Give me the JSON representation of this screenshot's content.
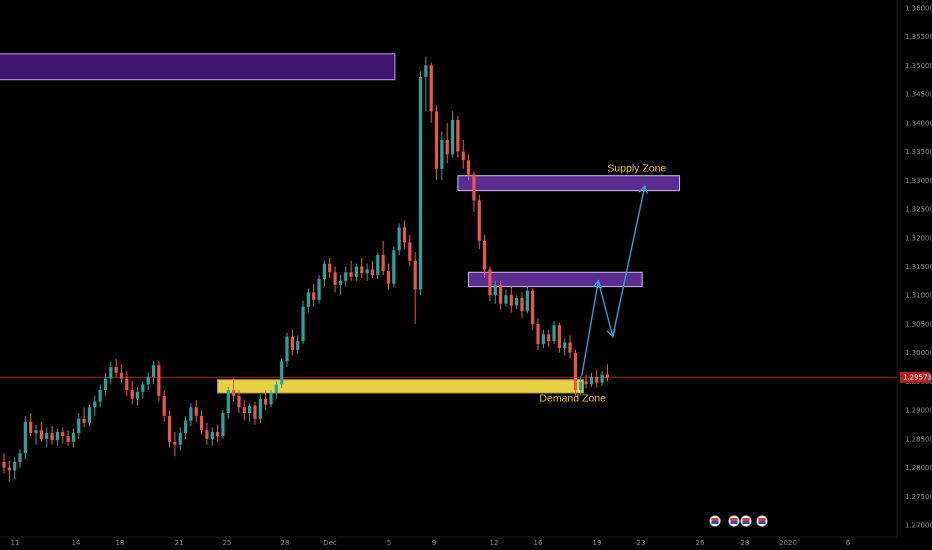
{
  "chart_data": {
    "type": "candlestick",
    "instrument_price_label": "1.29573",
    "current_price": 1.29573,
    "ylim": [
      1.2695,
      1.3605
    ],
    "y_ticks": [
      1.27,
      1.275,
      1.28,
      1.285,
      1.29,
      1.295,
      1.3,
      1.305,
      1.31,
      1.315,
      1.32,
      1.325,
      1.33,
      1.335,
      1.34,
      1.345,
      1.35,
      1.355,
      1.36
    ],
    "x_ticks": [
      "11",
      "14",
      "18",
      "21",
      "25",
      "28",
      "Dec",
      "5",
      "9",
      "12",
      "16",
      "19",
      "23",
      "26",
      "28",
      "2020",
      "6"
    ],
    "candles": [
      [
        1.281,
        1.2825,
        1.279,
        1.28
      ],
      [
        1.28,
        1.2812,
        1.2775,
        1.2795
      ],
      [
        1.2795,
        1.2818,
        1.278,
        1.281
      ],
      [
        1.281,
        1.2832,
        1.28,
        1.2825
      ],
      [
        1.2825,
        1.289,
        1.2815,
        1.288
      ],
      [
        1.288,
        1.2895,
        1.2855,
        1.286
      ],
      [
        1.286,
        1.2875,
        1.284,
        1.2865
      ],
      [
        1.2865,
        1.288,
        1.2845,
        1.285
      ],
      [
        1.285,
        1.287,
        1.2835,
        1.286
      ],
      [
        1.286,
        1.2872,
        1.284,
        1.2848
      ],
      [
        1.2848,
        1.2868,
        1.2838,
        1.2862
      ],
      [
        1.2862,
        1.287,
        1.2842,
        1.2855
      ],
      [
        1.2855,
        1.2865,
        1.2838,
        1.2845
      ],
      [
        1.2845,
        1.2868,
        1.2835,
        1.286
      ],
      [
        1.286,
        1.2895,
        1.285,
        1.2885
      ],
      [
        1.2885,
        1.2905,
        1.287,
        1.2878
      ],
      [
        1.2878,
        1.291,
        1.2872,
        1.2905
      ],
      [
        1.2905,
        1.2925,
        1.289,
        1.2915
      ],
      [
        1.2915,
        1.2945,
        1.2905,
        1.2935
      ],
      [
        1.2935,
        1.2965,
        1.2925,
        1.2955
      ],
      [
        1.2955,
        1.2985,
        1.2945,
        1.2975
      ],
      [
        1.2975,
        1.299,
        1.2958,
        1.2965
      ],
      [
        1.2965,
        1.298,
        1.2948,
        1.2955
      ],
      [
        1.2955,
        1.2968,
        1.2925,
        1.2935
      ],
      [
        1.2935,
        1.295,
        1.291,
        1.292
      ],
      [
        1.292,
        1.294,
        1.2908,
        1.2932
      ],
      [
        1.2932,
        1.295,
        1.292,
        1.2945
      ],
      [
        1.2945,
        1.2965,
        1.2935,
        1.2958
      ],
      [
        1.2958,
        1.2985,
        1.2945,
        1.2978
      ],
      [
        1.2978,
        1.2985,
        1.2915,
        1.2925
      ],
      [
        1.2925,
        1.2935,
        1.288,
        1.289
      ],
      [
        1.289,
        1.29,
        1.2835,
        1.2845
      ],
      [
        1.2845,
        1.2862,
        1.282,
        1.284
      ],
      [
        1.284,
        1.287,
        1.283,
        1.286
      ],
      [
        1.286,
        1.289,
        1.285,
        1.2882
      ],
      [
        1.2882,
        1.2912,
        1.2872,
        1.2905
      ],
      [
        1.2905,
        1.2918,
        1.288,
        1.289
      ],
      [
        1.289,
        1.29,
        1.2858,
        1.2865
      ],
      [
        1.2865,
        1.2878,
        1.284,
        1.285
      ],
      [
        1.285,
        1.287,
        1.2838,
        1.2862
      ],
      [
        1.2862,
        1.2875,
        1.2845,
        1.2855
      ],
      [
        1.2855,
        1.29,
        1.285,
        1.2895
      ],
      [
        1.2895,
        1.294,
        1.2885,
        1.2935
      ],
      [
        1.2935,
        1.2955,
        1.2915,
        1.2925
      ],
      [
        1.2925,
        1.2935,
        1.2895,
        1.2905
      ],
      [
        1.2905,
        1.2918,
        1.2882,
        1.2895
      ],
      [
        1.2895,
        1.2912,
        1.288,
        1.2908
      ],
      [
        1.2908,
        1.2915,
        1.2875,
        1.2885
      ],
      [
        1.2885,
        1.2928,
        1.2878,
        1.292
      ],
      [
        1.292,
        1.2935,
        1.29,
        1.291
      ],
      [
        1.291,
        1.2935,
        1.2905,
        1.293
      ],
      [
        1.293,
        1.295,
        1.292,
        1.2945
      ],
      [
        1.2945,
        1.299,
        1.2938,
        1.2985
      ],
      [
        1.2985,
        1.3035,
        1.2975,
        1.3028
      ],
      [
        1.3028,
        1.304,
        1.2995,
        1.3005
      ],
      [
        1.3005,
        1.303,
        1.2998,
        1.302
      ],
      [
        1.302,
        1.309,
        1.3015,
        1.308
      ],
      [
        1.308,
        1.3112,
        1.307,
        1.3105
      ],
      [
        1.3105,
        1.312,
        1.308,
        1.3092
      ],
      [
        1.3092,
        1.3135,
        1.3085,
        1.3128
      ],
      [
        1.3128,
        1.316,
        1.3115,
        1.3155
      ],
      [
        1.3155,
        1.3165,
        1.313,
        1.314
      ],
      [
        1.314,
        1.315,
        1.3105,
        1.3118
      ],
      [
        1.3118,
        1.3135,
        1.31,
        1.3125
      ],
      [
        1.3125,
        1.315,
        1.3115,
        1.314
      ],
      [
        1.314,
        1.316,
        1.3125,
        1.3132
      ],
      [
        1.3132,
        1.3155,
        1.3125,
        1.315
      ],
      [
        1.315,
        1.3165,
        1.313,
        1.3138
      ],
      [
        1.3138,
        1.3155,
        1.3125,
        1.3145
      ],
      [
        1.3145,
        1.316,
        1.313,
        1.3135
      ],
      [
        1.3135,
        1.3175,
        1.3128,
        1.317
      ],
      [
        1.317,
        1.3195,
        1.3135,
        1.3142
      ],
      [
        1.3142,
        1.3155,
        1.311,
        1.312
      ],
      [
        1.312,
        1.3185,
        1.3115,
        1.3178
      ],
      [
        1.3178,
        1.3225,
        1.317,
        1.3218
      ],
      [
        1.3218,
        1.323,
        1.318,
        1.3192
      ],
      [
        1.3192,
        1.3205,
        1.315,
        1.316
      ],
      [
        1.316,
        1.3175,
        1.305,
        1.311
      ],
      [
        1.311,
        1.349,
        1.31,
        1.348
      ],
      [
        1.348,
        1.3515,
        1.342,
        1.35
      ],
      [
        1.35,
        1.3505,
        1.34,
        1.342
      ],
      [
        1.342,
        1.343,
        1.33,
        1.332
      ],
      [
        1.332,
        1.3385,
        1.33,
        1.337
      ],
      [
        1.337,
        1.34,
        1.333,
        1.3345
      ],
      [
        1.3345,
        1.342,
        1.334,
        1.3405
      ],
      [
        1.3405,
        1.3412,
        1.334,
        1.335
      ],
      [
        1.335,
        1.337,
        1.332,
        1.3335
      ],
      [
        1.3335,
        1.3345,
        1.33,
        1.331
      ],
      [
        1.331,
        1.3315,
        1.3245,
        1.3265
      ],
      [
        1.3265,
        1.3275,
        1.318,
        1.3195
      ],
      [
        1.3195,
        1.3205,
        1.313,
        1.3145
      ],
      [
        1.3145,
        1.315,
        1.309,
        1.31
      ],
      [
        1.31,
        1.3125,
        1.3085,
        1.3118
      ],
      [
        1.3118,
        1.3125,
        1.3075,
        1.3085
      ],
      [
        1.3085,
        1.311,
        1.308,
        1.31
      ],
      [
        1.31,
        1.3115,
        1.307,
        1.3082
      ],
      [
        1.3082,
        1.31,
        1.3075,
        1.3095
      ],
      [
        1.3095,
        1.3105,
        1.306,
        1.3072
      ],
      [
        1.3072,
        1.3115,
        1.3068,
        1.3108
      ],
      [
        1.3108,
        1.3112,
        1.304,
        1.305
      ],
      [
        1.305,
        1.306,
        1.3005,
        1.3015
      ],
      [
        1.3015,
        1.304,
        1.3008,
        1.3032
      ],
      [
        1.3032,
        1.304,
        1.301,
        1.302
      ],
      [
        1.302,
        1.3055,
        1.3015,
        1.3048
      ],
      [
        1.3048,
        1.3052,
        1.3,
        1.3008
      ],
      [
        1.3008,
        1.3025,
        1.2995,
        1.3018
      ],
      [
        1.3018,
        1.303,
        1.299,
        1.3
      ],
      [
        1.3,
        1.3005,
        1.2925,
        1.2935
      ],
      [
        1.2935,
        1.296,
        1.2925,
        1.295
      ],
      [
        1.295,
        1.2962,
        1.2938,
        1.2945
      ],
      [
        1.2945,
        1.2965,
        1.294,
        1.2958
      ],
      [
        1.2958,
        1.297,
        1.294,
        1.2948
      ],
      [
        1.2948,
        1.2968,
        1.2942,
        1.2962
      ],
      [
        1.2962,
        1.298,
        1.295,
        1.2957
      ]
    ],
    "zones": [
      {
        "kind": "supply",
        "low": 1.3475,
        "high": 1.352,
        "t_start": -1,
        "t_end": 73.2,
        "fill": "#3f1270",
        "stroke": "#b8a4e0"
      },
      {
        "kind": "supply",
        "low": 1.3282,
        "high": 1.3308,
        "t_start": 85,
        "t_end": 126.5,
        "fill": "#5b2d91",
        "stroke": "#cbbcf0"
      },
      {
        "kind": "supply",
        "low": 1.3115,
        "high": 1.314,
        "t_start": 87,
        "t_end": 119.5,
        "fill": "#5b2d91",
        "stroke": "#cbbcf0"
      },
      {
        "kind": "demand",
        "low": 1.293,
        "high": 1.2953,
        "t_start": 40,
        "t_end": 108.5,
        "fill": "#e6d043",
        "stroke": "#b9a233"
      }
    ],
    "projection_path": [
      {
        "t": 108.2,
        "price": 1.296
      },
      {
        "t": 111.3,
        "price": 1.3125
      },
      {
        "t": 114.0,
        "price": 1.3028
      },
      {
        "t": 120.0,
        "price": 1.329
      }
    ],
    "annotations": [
      {
        "text": "Supply Zone",
        "t": 118.5,
        "price": 1.3315
      },
      {
        "text": "Demand Zone",
        "t": 106.5,
        "price": 1.2915
      }
    ],
    "colors": {
      "up": "#26a69a",
      "down": "#ef5350",
      "price_line": "#b22222",
      "projection": "#2a9fd8",
      "axis_text": "#8a8a8a"
    }
  }
}
